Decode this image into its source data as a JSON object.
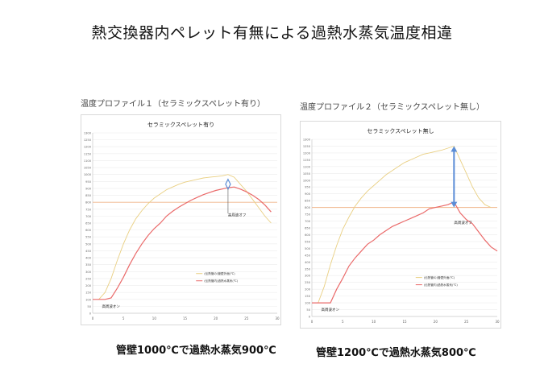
{
  "page": {
    "title": "熱交換器内ペレット有無による過熱水蒸気温度相違",
    "left_caption": "温度プロファイル１（セラミックスペレット有り）",
    "right_caption": "温度プロファイル２（セラミックスペレット無し）",
    "left_bottom": "管壁1000℃で過熱水蒸気900℃",
    "right_bottom": "管壁1200℃で過熱水蒸気800℃"
  },
  "chart_data": [
    {
      "type": "line",
      "title": "セラミックスペレット有り",
      "ylim": [
        0,
        1300
      ],
      "xlim": [
        0,
        30
      ],
      "yticks": [
        0,
        50,
        100,
        150,
        200,
        250,
        300,
        350,
        400,
        450,
        500,
        550,
        600,
        650,
        700,
        750,
        800,
        850,
        900,
        950,
        1000,
        1050,
        1100,
        1150,
        1200,
        1250,
        1300
      ],
      "xticks": [
        0,
        5,
        10,
        15,
        20,
        25,
        30
      ],
      "grid": true,
      "legend_position": "bottom-right",
      "legend": [
        "(伝熱管の)管壁外面(℃)",
        "(伝熱管内)過熱水蒸気(℃)"
      ],
      "reference_line": {
        "y": 800,
        "color": "#f0b58a"
      },
      "series": [
        {
          "name": "(伝熱管の)管壁外面(℃)",
          "color": "#e9cf82",
          "x": [
            1,
            2,
            3,
            4,
            5,
            6,
            7,
            8,
            9,
            10,
            11,
            12,
            13,
            14,
            15,
            16,
            17,
            18,
            19,
            20,
            21,
            22,
            23,
            24,
            25,
            26,
            27,
            28,
            29
          ],
          "y": [
            100,
            150,
            250,
            380,
            500,
            600,
            680,
            740,
            790,
            830,
            860,
            890,
            910,
            930,
            945,
            955,
            965,
            975,
            980,
            985,
            990,
            1000,
            980,
            930,
            880,
            820,
            760,
            700,
            650
          ]
        },
        {
          "name": "(伝熱管内)過熱水蒸気(℃)",
          "color": "#ea6a6a",
          "x": [
            0,
            1,
            2,
            3,
            4,
            5,
            6,
            7,
            8,
            9,
            10,
            11,
            12,
            13,
            14,
            15,
            16,
            17,
            18,
            19,
            20,
            21,
            22,
            23,
            24,
            25,
            26,
            27,
            28,
            29
          ],
          "y": [
            100,
            100,
            100,
            110,
            180,
            260,
            350,
            430,
            500,
            560,
            610,
            650,
            700,
            735,
            765,
            790,
            815,
            835,
            855,
            870,
            885,
            895,
            905,
            910,
            895,
            875,
            850,
            820,
            780,
            730
          ]
        }
      ],
      "annotations": [
        {
          "text": "高周波オン",
          "x": 1.5,
          "y": 40
        },
        {
          "text": "高周波オフ",
          "x": 22,
          "y": 700
        }
      ],
      "marker": {
        "x": 22,
        "y": 930,
        "shape": "diamond",
        "color": "#5b8dd6"
      }
    },
    {
      "type": "line",
      "title": "セラミックスペレット無し",
      "ylim": [
        0,
        1300
      ],
      "xlim": [
        0,
        30
      ],
      "yticks": [
        0,
        50,
        100,
        150,
        200,
        250,
        300,
        350,
        400,
        450,
        500,
        550,
        600,
        650,
        700,
        750,
        800,
        850,
        900,
        950,
        1000,
        1050,
        1100,
        1150,
        1200,
        1250,
        1300
      ],
      "xticks": [
        0,
        5,
        10,
        15,
        20,
        25,
        30
      ],
      "grid": true,
      "legend_position": "bottom-right",
      "legend": [
        "(伝熱管の)管壁外面(℃)",
        "(伝熱管内)過熱水蒸気(℃)"
      ],
      "reference_line": {
        "y": 800,
        "color": "#f0b58a"
      },
      "series": [
        {
          "name": "(伝熱管の)管壁外面(℃)",
          "color": "#e9cf82",
          "x": [
            1,
            2,
            3,
            4,
            5,
            6,
            7,
            8,
            9,
            10,
            11,
            12,
            13,
            14,
            15,
            16,
            17,
            18,
            19,
            20,
            21,
            22,
            23,
            24,
            25,
            26,
            27,
            28,
            29
          ],
          "y": [
            100,
            220,
            380,
            520,
            640,
            730,
            810,
            870,
            920,
            960,
            1000,
            1040,
            1070,
            1100,
            1130,
            1150,
            1170,
            1190,
            1200,
            1210,
            1220,
            1235,
            1250,
            1150,
            1050,
            950,
            870,
            820,
            800
          ]
        },
        {
          "name": "(伝熱管内)過熱水蒸気(℃)",
          "color": "#ea6a6a",
          "x": [
            0,
            1,
            2,
            3,
            4,
            5,
            6,
            7,
            8,
            9,
            10,
            11,
            12,
            13,
            14,
            15,
            16,
            17,
            18,
            19,
            20,
            21,
            22,
            23,
            24,
            25,
            26,
            27,
            28,
            29,
            30
          ],
          "y": [
            100,
            100,
            100,
            100,
            200,
            280,
            370,
            430,
            480,
            530,
            560,
            600,
            630,
            660,
            680,
            700,
            720,
            740,
            760,
            790,
            800,
            810,
            820,
            840,
            760,
            710,
            680,
            620,
            560,
            510,
            480
          ]
        }
      ],
      "annotations": [
        {
          "text": "高周波オン",
          "x": 1.5,
          "y": 40
        },
        {
          "text": "高周波オフ",
          "x": 23,
          "y": 680
        }
      ],
      "arrow": {
        "x": 23,
        "y_from": 800,
        "y_to": 1250,
        "color": "#5b8dd6"
      }
    }
  ]
}
